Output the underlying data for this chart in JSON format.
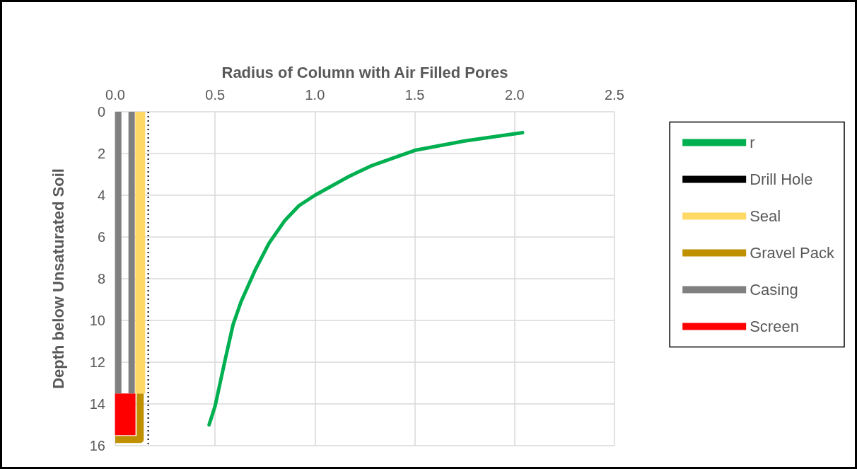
{
  "chart_data": {
    "type": "line",
    "xlabel": "Radius of Column with Air Filled Pores",
    "ylabel": "Depth below Unsaturated Soil",
    "xlim": [
      0,
      2.5
    ],
    "xticks": [
      {
        "value": 0,
        "label": "0.0"
      },
      {
        "value": 0.5,
        "label": "0.5"
      },
      {
        "value": 1,
        "label": "1.0"
      },
      {
        "value": 1.5,
        "label": "1.5"
      },
      {
        "value": 2,
        "label": "2.0"
      },
      {
        "value": 2.5,
        "label": "2.5"
      }
    ],
    "ylim": [
      16,
      0
    ],
    "yticks": [
      0,
      2,
      4,
      6,
      8,
      10,
      12,
      14,
      16
    ],
    "grid": true,
    "legend": "right",
    "series": [
      {
        "name": "r",
        "color": "#00b050",
        "x": [
          2.04,
          1.75,
          1.5,
          1.28,
          1.17,
          1.0,
          0.92,
          0.85,
          0.77,
          0.7,
          0.63,
          0.59,
          0.55,
          0.5,
          0.47
        ],
        "values": [
          1.0,
          1.4,
          1.85,
          2.6,
          3.1,
          4.0,
          4.5,
          5.2,
          6.3,
          7.6,
          9.1,
          10.2,
          11.9,
          14.1,
          15.0
        ]
      },
      {
        "name": "Drill Hole",
        "color": "#000000",
        "line_style": "dotted",
        "x": [
          0.165,
          0.165
        ],
        "values": [
          0,
          16
        ]
      },
      {
        "name": "Seal",
        "color": "#ffd966",
        "x": [
          0.125,
          0.125
        ],
        "values": [
          0,
          13.5
        ]
      },
      {
        "name": "Gravel Pack",
        "color": "#bf9000",
        "x": [
          0.125,
          0.125,
          0
        ],
        "values": [
          13.5,
          15.7,
          15.7
        ]
      },
      {
        "name": "Casing",
        "color": "#808080",
        "x": [
          0.015,
          0.015,
          null,
          0.082,
          0.082
        ],
        "values": [
          0,
          13.5,
          null,
          0,
          13.5
        ]
      },
      {
        "name": "Screen",
        "color": "#ff0000",
        "x": [
          0.05,
          0.05
        ],
        "values": [
          13.5,
          15.5
        ]
      }
    ]
  }
}
